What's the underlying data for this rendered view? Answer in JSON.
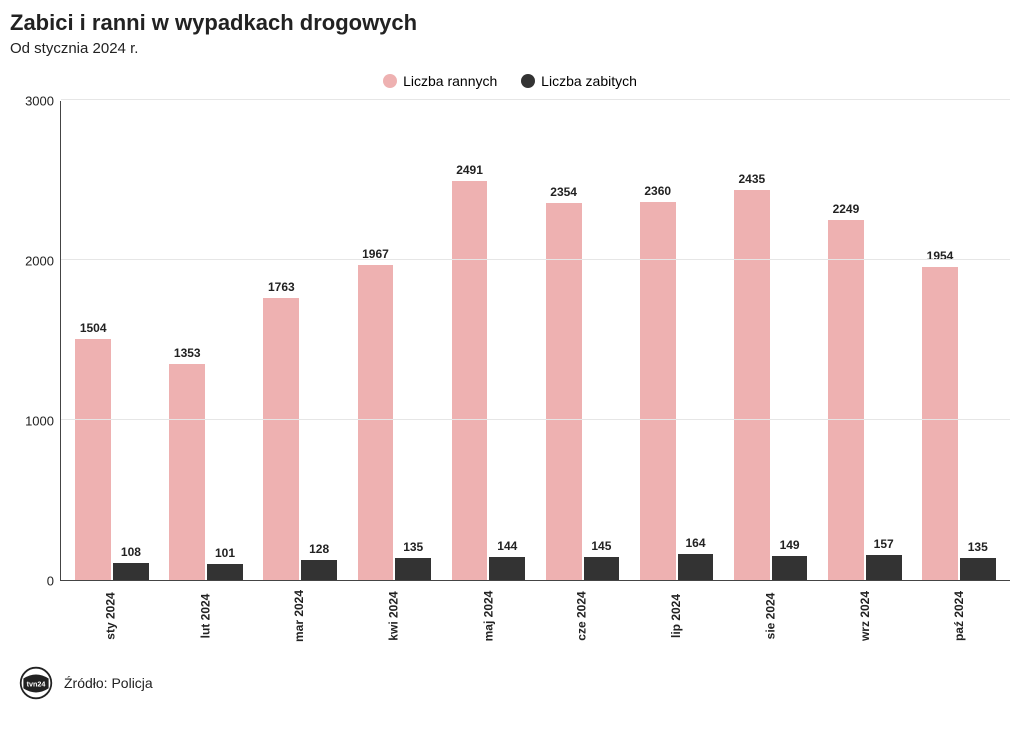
{
  "chart": {
    "type": "grouped-bar",
    "title": "Zabici i ranni w wypadkach drogowych",
    "subtitle": "Od stycznia 2024 r.",
    "legend": {
      "series1": {
        "label": "Liczba rannych",
        "color": "#eeb1b1"
      },
      "series2": {
        "label": "Liczba zabitych",
        "color": "#333333"
      }
    },
    "categories": [
      "sty 2024",
      "lut 2024",
      "mar 2024",
      "kwi 2024",
      "maj 2024",
      "cze 2024",
      "lip 2024",
      "sie 2024",
      "wrz 2024",
      "paź 2024"
    ],
    "series1_values": [
      1504,
      1353,
      1763,
      1967,
      2491,
      2354,
      2360,
      2435,
      2249,
      1954
    ],
    "series2_values": [
      108,
      101,
      128,
      135,
      144,
      145,
      164,
      149,
      157,
      135
    ],
    "y_axis": {
      "min": 0,
      "max": 3000,
      "ticks": [
        0,
        1000,
        2000,
        3000
      ]
    },
    "grid_color": "#e6e6e6",
    "axis_color": "#444444",
    "background_color": "#ffffff",
    "label_fontsize": 12,
    "title_fontsize": 22
  },
  "footer": {
    "logo_text": "tvn24",
    "source_label": "Źródło: Policja"
  }
}
